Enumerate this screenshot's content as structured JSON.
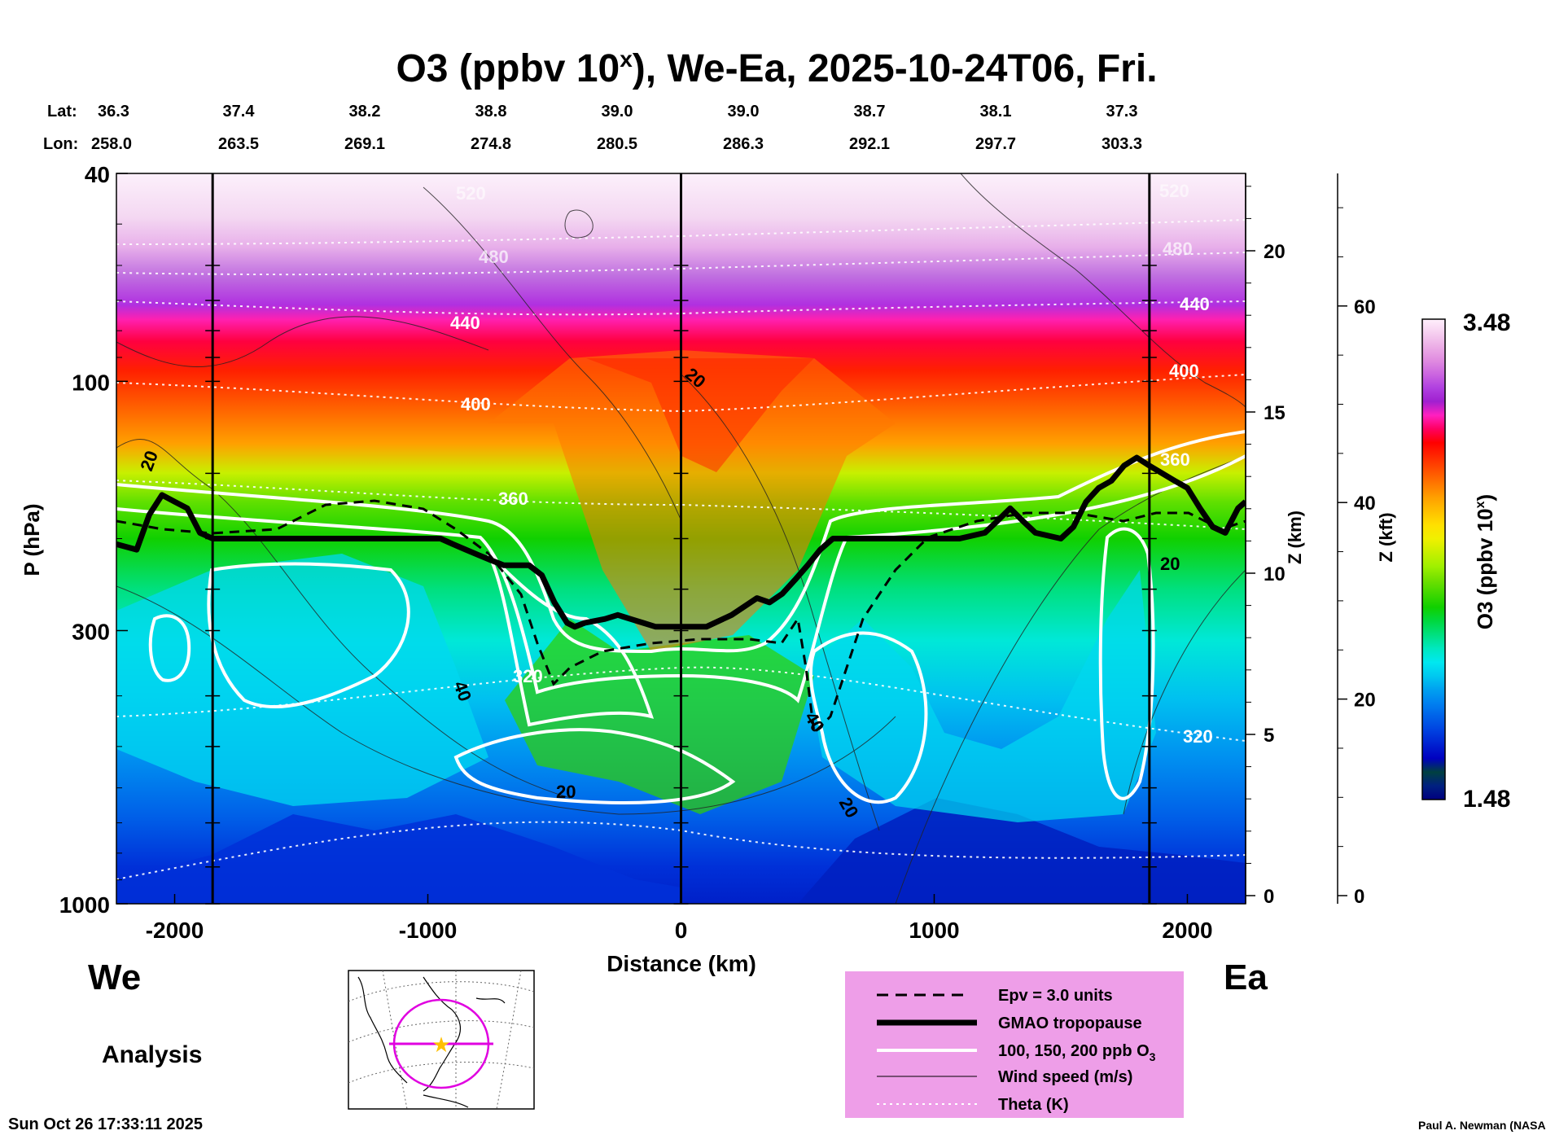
{
  "chart_data": {
    "type": "heatmap",
    "title": "O3 (ppbv 10",
    "title_exponent": "x",
    "title_suffix": "), We-Ea, 2025-10-24T06, Fri.",
    "xlabel": "Distance (km)",
    "ylabel": "P (hPa)",
    "xlim": [
      -2230,
      2230
    ],
    "ylim_hpa": [
      1000,
      40
    ],
    "x_ticks": [
      -2000,
      -1000,
      0,
      1000,
      2000
    ],
    "x_tick_labels": [
      "-2000",
      "-1000",
      "0",
      "1000",
      "2000"
    ],
    "p_ticks": [
      40,
      100,
      300,
      1000
    ],
    "p_tick_labels": [
      "40",
      "100",
      "300",
      "1000"
    ],
    "z_km_label": "Z (km)",
    "z_km_ticks": [
      0,
      5,
      10,
      15,
      20
    ],
    "z_km_tick_labels": [
      "0",
      "5",
      "10",
      "15",
      "20"
    ],
    "z_kft_label": "Z (kft)",
    "z_kft_ticks": [
      0,
      20,
      40,
      60
    ],
    "z_kft_tick_labels": [
      "0",
      "20",
      "40",
      "60"
    ],
    "lat_label": "Lat:",
    "lon_label": "Lon:",
    "lat_values": [
      "36.3",
      "37.4",
      "38.2",
      "38.8",
      "39.0",
      "39.0",
      "38.7",
      "38.1",
      "37.3"
    ],
    "lon_values": [
      "258.0",
      "263.5",
      "269.1",
      "274.8",
      "280.5",
      "286.3",
      "292.1",
      "297.7",
      "303.3"
    ],
    "vertical_markers_km": [
      -1850,
      0,
      1850
    ],
    "tropopause_hpa": {
      "x": [
        -2230,
        -2150,
        -2100,
        -2050,
        -2000,
        -1950,
        -1900,
        -1850,
        -1700,
        -1500,
        -1300,
        -1100,
        -1000,
        -950,
        -900,
        -850,
        -800,
        -750,
        -700,
        -600,
        -550,
        -500,
        -450,
        -420,
        -380,
        -300,
        -250,
        -200,
        -150,
        -100,
        0,
        100,
        200,
        300,
        350,
        400,
        450,
        500,
        550,
        600,
        700,
        800,
        900,
        1000,
        1100,
        1200,
        1250,
        1300,
        1350,
        1400,
        1500,
        1550,
        1600,
        1650,
        1700,
        1750,
        1800,
        1850,
        1900,
        1950,
        2000,
        2050,
        2100,
        2150,
        2200,
        2230
      ],
      "p": [
        205,
        210,
        180,
        165,
        170,
        175,
        195,
        200,
        200,
        200,
        200,
        200,
        200,
        200,
        205,
        210,
        215,
        220,
        225,
        225,
        235,
        265,
        290,
        295,
        290,
        285,
        280,
        285,
        290,
        295,
        295,
        295,
        280,
        260,
        265,
        255,
        240,
        225,
        210,
        200,
        200,
        200,
        200,
        200,
        200,
        195,
        185,
        175,
        185,
        195,
        200,
        190,
        170,
        160,
        155,
        145,
        140,
        145,
        150,
        155,
        160,
        175,
        190,
        195,
        175,
        170
      ]
    },
    "ozone_contour_labels": [],
    "wind_contour_labels": [
      "20",
      "40",
      "20",
      "20",
      "20",
      "40",
      "20",
      "20"
    ],
    "theta_contour_labels": [
      "320",
      "320",
      "360",
      "360",
      "400",
      "400",
      "440",
      "440",
      "480",
      "480",
      "520",
      "520"
    ],
    "colorbar": {
      "label": "O3 (ppbv 10",
      "label_exponent": "x",
      "label_suffix": ")",
      "max": "3.48",
      "min": "1.48",
      "colors": [
        "#fff0fc",
        "#f6cff0",
        "#ecaee6",
        "#e08ce0",
        "#cc66e0",
        "#b040e0",
        "#a020d0",
        "#ff20c0",
        "#ff0060",
        "#ff0000",
        "#ff2800",
        "#ff5000",
        "#ff7800",
        "#ffa000",
        "#ffc000",
        "#ffe000",
        "#f0f000",
        "#c8f000",
        "#a0f000",
        "#70e000",
        "#40d800",
        "#10d000",
        "#00d840",
        "#00e080",
        "#00e8c0",
        "#00e8f0",
        "#00c8f0",
        "#00a0f0",
        "#0080f0",
        "#0060e8",
        "#0040e0",
        "#0020d0",
        "#0000c0",
        "#004040",
        "#002080",
        "#000080"
      ]
    }
  },
  "panel": {
    "we_label": "We",
    "ea_label": "Ea",
    "analysis_label": "Analysis",
    "timestamp": "Sun Oct 26 17:33:11 2025",
    "credit": "Paul A. Newman (NASA"
  },
  "legend": {
    "items": [
      {
        "label": "Epv = 3.0 units"
      },
      {
        "label": "GMAO tropopause"
      },
      {
        "label": "100, 150, 200 ppb O",
        "sub": "3"
      },
      {
        "label": "Wind speed (m/s)"
      },
      {
        "label": "Theta (K)"
      }
    ],
    "background": "#ee9ee8"
  }
}
